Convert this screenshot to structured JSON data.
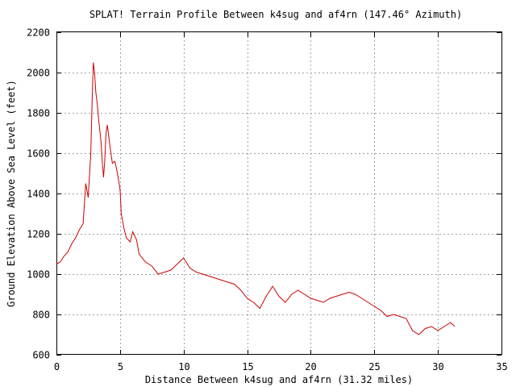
{
  "chart_data": {
    "type": "line",
    "title": "SPLAT! Terrain Profile Between k4sug and af4rn (147.46° Azimuth)",
    "xlabel": "Distance Between k4sug and af4rn (31.32 miles)",
    "ylabel": "Ground Elevation Above Sea Level (feet)",
    "xlim": [
      0,
      35
    ],
    "ylim": [
      600,
      2200
    ],
    "xticks": [
      "0",
      "5",
      "10",
      "15",
      "20",
      "25",
      "30",
      "35"
    ],
    "yticks": [
      "600",
      "800",
      "1000",
      "1200",
      "1400",
      "1600",
      "1800",
      "2000",
      "2200"
    ],
    "grid": true,
    "series": [
      {
        "color": "#cc0000",
        "x": [
          0,
          0.3,
          0.6,
          0.9,
          1.2,
          1.5,
          1.8,
          2.1,
          2.3,
          2.5,
          2.7,
          2.8,
          2.9,
          3.0,
          3.1,
          3.2,
          3.3,
          3.4,
          3.5,
          3.6,
          3.7,
          3.8,
          3.9,
          4.0,
          4.1,
          4.2,
          4.4,
          4.6,
          4.8,
          5.0,
          5.1,
          5.3,
          5.5,
          5.8,
          6.0,
          6.3,
          6.5,
          7.0,
          7.5,
          8.0,
          8.5,
          9.0,
          9.5,
          10.0,
          10.5,
          11.0,
          11.5,
          12.0,
          12.5,
          13.0,
          13.5,
          14.0,
          14.5,
          15.0,
          15.5,
          16.0,
          16.5,
          17.0,
          17.5,
          18.0,
          18.5,
          19.0,
          19.5,
          20.0,
          20.5,
          21.0,
          21.5,
          22.0,
          22.5,
          23.0,
          23.5,
          24.0,
          24.5,
          25.0,
          25.5,
          26.0,
          26.5,
          27.0,
          27.5,
          28.0,
          28.5,
          29.0,
          29.5,
          30.0,
          30.5,
          31.0,
          31.32
        ],
        "y": [
          1050,
          1060,
          1090,
          1110,
          1150,
          1180,
          1220,
          1250,
          1450,
          1380,
          1600,
          1850,
          2050,
          2000,
          1900,
          1850,
          1780,
          1720,
          1660,
          1560,
          1480,
          1560,
          1700,
          1740,
          1690,
          1640,
          1550,
          1560,
          1500,
          1420,
          1300,
          1230,
          1180,
          1160,
          1210,
          1170,
          1100,
          1060,
          1040,
          1000,
          1010,
          1020,
          1050,
          1080,
          1030,
          1010,
          1000,
          990,
          980,
          970,
          960,
          950,
          920,
          880,
          860,
          830,
          890,
          940,
          890,
          860,
          900,
          920,
          900,
          880,
          870,
          860,
          880,
          890,
          900,
          910,
          900,
          880,
          860,
          840,
          820,
          790,
          800,
          790,
          780,
          720,
          700,
          730,
          740,
          720,
          740,
          760,
          740
        ]
      }
    ]
  }
}
